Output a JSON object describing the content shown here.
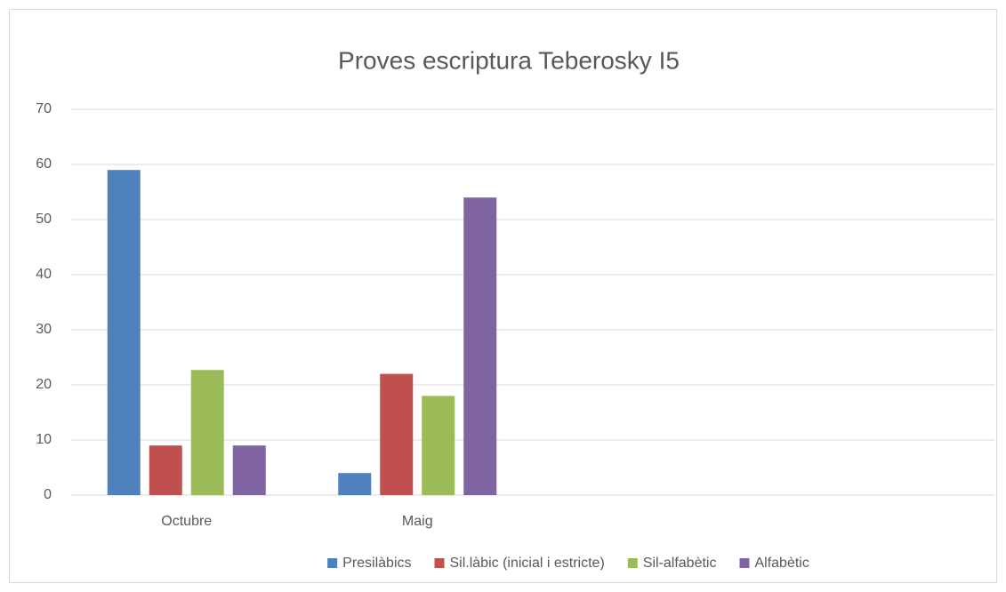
{
  "chart_data": {
    "type": "bar",
    "title": "Proves escriptura Teberosky I5",
    "categories": [
      "Octubre",
      "Maig",
      null,
      null
    ],
    "series": [
      {
        "name": "Presilàbics",
        "color": "#4f81bd",
        "values": [
          59,
          4,
          null,
          null
        ]
      },
      {
        "name": "Sil.làbic (inicial i estricte)",
        "color": "#c0504d",
        "values": [
          9,
          22,
          null,
          null
        ]
      },
      {
        "name": "Sil-alfabètic",
        "color": "#9bbb59",
        "values": [
          22.7,
          18,
          null,
          null
        ]
      },
      {
        "name": "Alfabètic",
        "color": "#8064a2",
        "values": [
          9,
          54,
          null,
          null
        ]
      }
    ],
    "ylim": [
      0,
      70
    ],
    "yticks": [
      0,
      10,
      20,
      30,
      40,
      50,
      60,
      70
    ],
    "grid": true,
    "legend": "bottom"
  }
}
